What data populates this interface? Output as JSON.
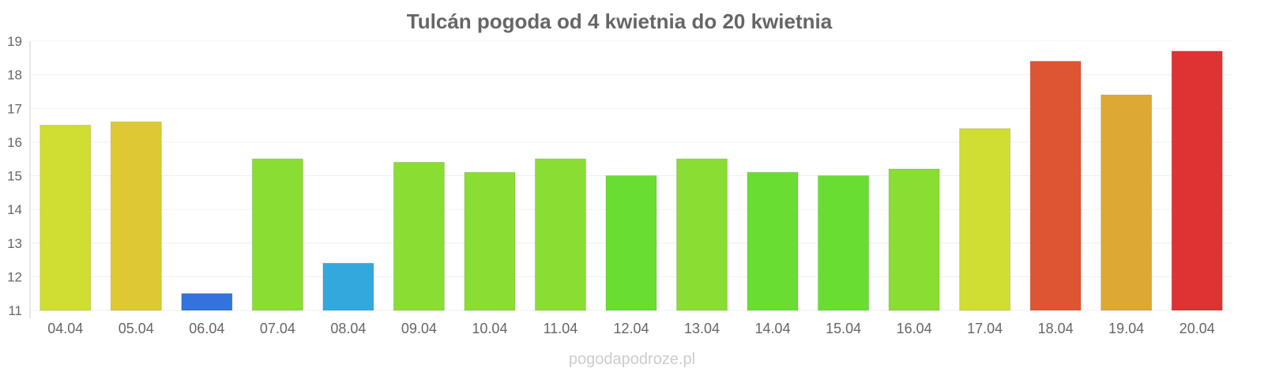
{
  "chart_data": {
    "type": "bar",
    "title": "Tulcán pogoda od 4 kwietnia do 20 kwietnia",
    "xlabel": "",
    "ylabel": "",
    "ylim": [
      11,
      19
    ],
    "yticks": [
      "11",
      "12",
      "13",
      "14",
      "15",
      "16",
      "17",
      "18",
      "19"
    ],
    "grid": true,
    "categories": [
      "04.04",
      "05.04",
      "06.04",
      "07.04",
      "08.04",
      "09.04",
      "10.04",
      "11.04",
      "12.04",
      "13.04",
      "14.04",
      "15.04",
      "16.04",
      "17.04",
      "18.04",
      "19.04",
      "20.04"
    ],
    "values": [
      16.5,
      16.6,
      11.5,
      15.5,
      12.4,
      15.4,
      15.1,
      15.5,
      15.0,
      15.5,
      15.1,
      15.0,
      15.2,
      16.4,
      18.4,
      17.4,
      18.7
    ],
    "colors": [
      "#d0dd33",
      "#ddc933",
      "#3373dd",
      "#8add33",
      "#33a8dd",
      "#8add33",
      "#8add33",
      "#8add33",
      "#6add33",
      "#8add33",
      "#6add33",
      "#6add33",
      "#8add33",
      "#d0dd33",
      "#dd5533",
      "#dda833",
      "#dd3333"
    ]
  },
  "footer": {
    "watermark": "pogodapodroze.pl"
  }
}
